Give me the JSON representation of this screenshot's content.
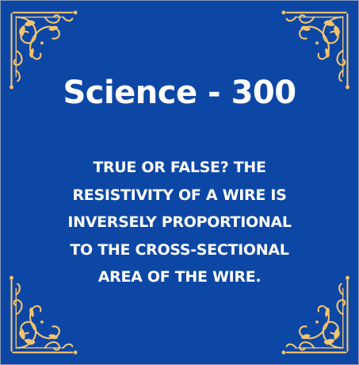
{
  "card": {
    "title": "Science - 300",
    "question_lines": [
      "TRUE OR FALSE? THE",
      "RESISTIVITY OF A WIRE IS",
      "INVERSELY PROPORTIONAL",
      "TO THE CROSS-SECTIONAL",
      "AREA OF THE WIRE."
    ]
  },
  "colors": {
    "background": "#0d47a6",
    "ornament": "#f3c46b",
    "text": "#ffffff"
  },
  "icons": {
    "corners": "ornamental-flourish-icon"
  }
}
